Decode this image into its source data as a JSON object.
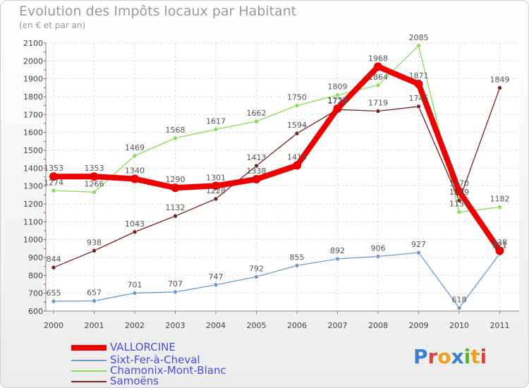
{
  "title": "Evolution des Impôts locaux par Habitant",
  "subtitle": "(en € et par an)",
  "logo": [
    "P",
    "r",
    "o",
    "x",
    "i",
    "t",
    "i"
  ],
  "chart_data": {
    "type": "line",
    "x": [
      "2000",
      "2001",
      "2002",
      "2003",
      "2004",
      "2005",
      "2006",
      "2007",
      "2008",
      "2009",
      "2010",
      "2011"
    ],
    "ylim": [
      600,
      2100
    ],
    "yticks": [
      600,
      700,
      800,
      900,
      1000,
      1100,
      1200,
      1300,
      1400,
      1500,
      1600,
      1700,
      1800,
      1900,
      2000,
      2100
    ],
    "series": [
      {
        "name": "VALLORCINE",
        "color": "#ee0000",
        "values": [
          1353,
          1353,
          1340,
          1290,
          1301,
          1338,
          1415,
          1733,
          1968,
          1871,
          1270,
          938
        ],
        "labels": [
          "1353",
          "1353",
          "1340",
          "1290",
          "1301",
          "1338",
          "1415",
          "1733",
          "1968",
          "1871",
          "1270",
          "938"
        ]
      },
      {
        "name": "Sixt-Fer-à-Cheval",
        "color": "#6b9ccc",
        "values": [
          655,
          657,
          701,
          707,
          747,
          792,
          855,
          892,
          906,
          927,
          618,
          921
        ],
        "labels": [
          "655",
          "657",
          "701",
          "707",
          "747",
          "792",
          "855",
          "892",
          "906",
          "927",
          "618",
          "921"
        ]
      },
      {
        "name": "Chamonix-Mont-Blanc",
        "color": "#88dd55",
        "values": [
          1274,
          1266,
          1469,
          1568,
          1617,
          1662,
          1750,
          1809,
          1864,
          2085,
          1154,
          1182
        ],
        "labels": [
          "1274",
          "1266",
          "1469",
          "1568",
          "1617",
          "1662",
          "1750",
          "1809",
          "1864",
          "2085",
          "1154",
          "1182"
        ]
      },
      {
        "name": "Samoëns",
        "color": "#7a2020",
        "values": [
          844,
          938,
          1043,
          1132,
          1228,
          1413,
          1594,
          1728,
          1719,
          1745,
          1219,
          1849
        ],
        "labels": [
          "844",
          "938",
          "1043",
          "1132",
          "1228",
          "1413",
          "1594",
          "1728",
          "1719",
          "1745",
          "1219",
          "1849"
        ]
      }
    ]
  }
}
